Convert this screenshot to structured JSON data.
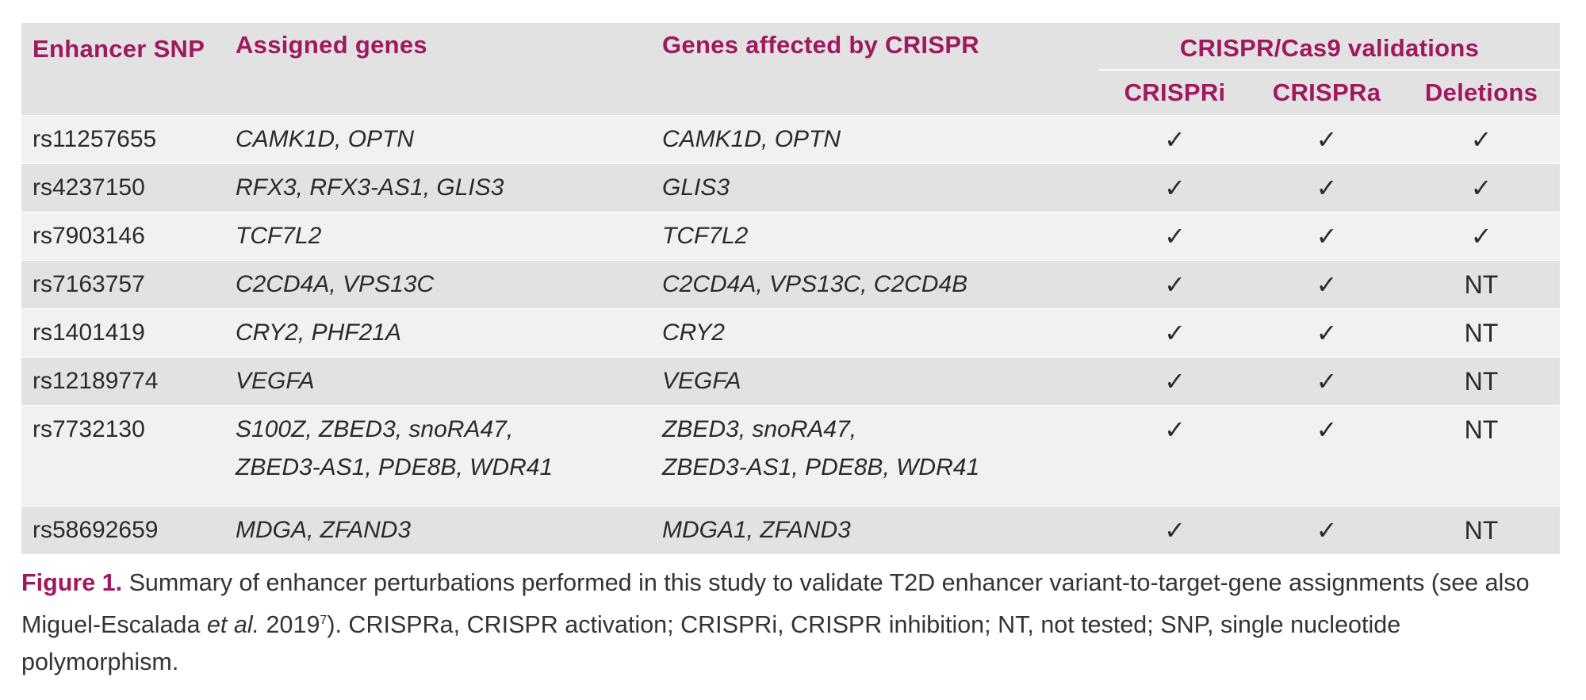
{
  "table": {
    "headers": {
      "snp": "Enhancer SNP",
      "assigned": "Assigned genes",
      "affected": "Genes affected by CRISPR",
      "group": "CRISPR/Cas9 validations",
      "crispri": "CRISPRi",
      "crispra": "CRISPRa",
      "deletions": "Deletions"
    },
    "rows": [
      {
        "snp": "rs11257655",
        "assigned": "CAMK1D, OPTN",
        "affected": "CAMK1D, OPTN",
        "crispri": "✓",
        "crispra": "✓",
        "deletions": "✓"
      },
      {
        "snp": "rs4237150",
        "assigned": "RFX3, RFX3-AS1, GLIS3",
        "affected": "GLIS3",
        "crispri": "✓",
        "crispra": "✓",
        "deletions": "✓"
      },
      {
        "snp": "rs7903146",
        "assigned": "TCF7L2",
        "affected": "TCF7L2",
        "crispri": "✓",
        "crispra": "✓",
        "deletions": "✓"
      },
      {
        "snp": "rs7163757",
        "assigned": "C2CD4A, VPS13C",
        "affected": "C2CD4A, VPS13C, C2CD4B",
        "crispri": "✓",
        "crispra": "✓",
        "deletions": "NT"
      },
      {
        "snp": "rs1401419",
        "assigned": "CRY2, PHF21A",
        "affected": "CRY2",
        "crispri": "✓",
        "crispra": "✓",
        "deletions": "NT"
      },
      {
        "snp": "rs12189774",
        "assigned": "VEGFA",
        "affected": "VEGFA",
        "crispri": "✓",
        "crispra": "✓",
        "deletions": "NT"
      },
      {
        "snp": "rs7732130",
        "assigned_lines": [
          "S100Z, ZBED3, snoRA47,",
          "ZBED3-AS1, PDE8B, WDR41"
        ],
        "affected_lines": [
          "ZBED3, snoRA47,",
          "ZBED3-AS1, PDE8B, WDR41"
        ],
        "crispri": "✓",
        "crispra": "✓",
        "deletions": "NT"
      },
      {
        "snp": "rs58692659",
        "assigned": "MDGA, ZFAND3",
        "affected": "MDGA1, ZFAND3",
        "crispri": "✓",
        "crispra": "✓",
        "deletions": "NT"
      }
    ]
  },
  "caption": {
    "label": "Figure 1.",
    "text_1": " Summary of enhancer perturbations performed in this study to validate T2D enhancer variant-to-target-gene assignments (see also Miguel-Escalada ",
    "italic": "et al.",
    "text_2": " 2019",
    "ref": "7",
    "text_3": "). CRISPRa, CRISPR activation; CRISPRi, CRISPR inhibition; NT, not tested; SNP, single nucleotide polymorphism."
  }
}
